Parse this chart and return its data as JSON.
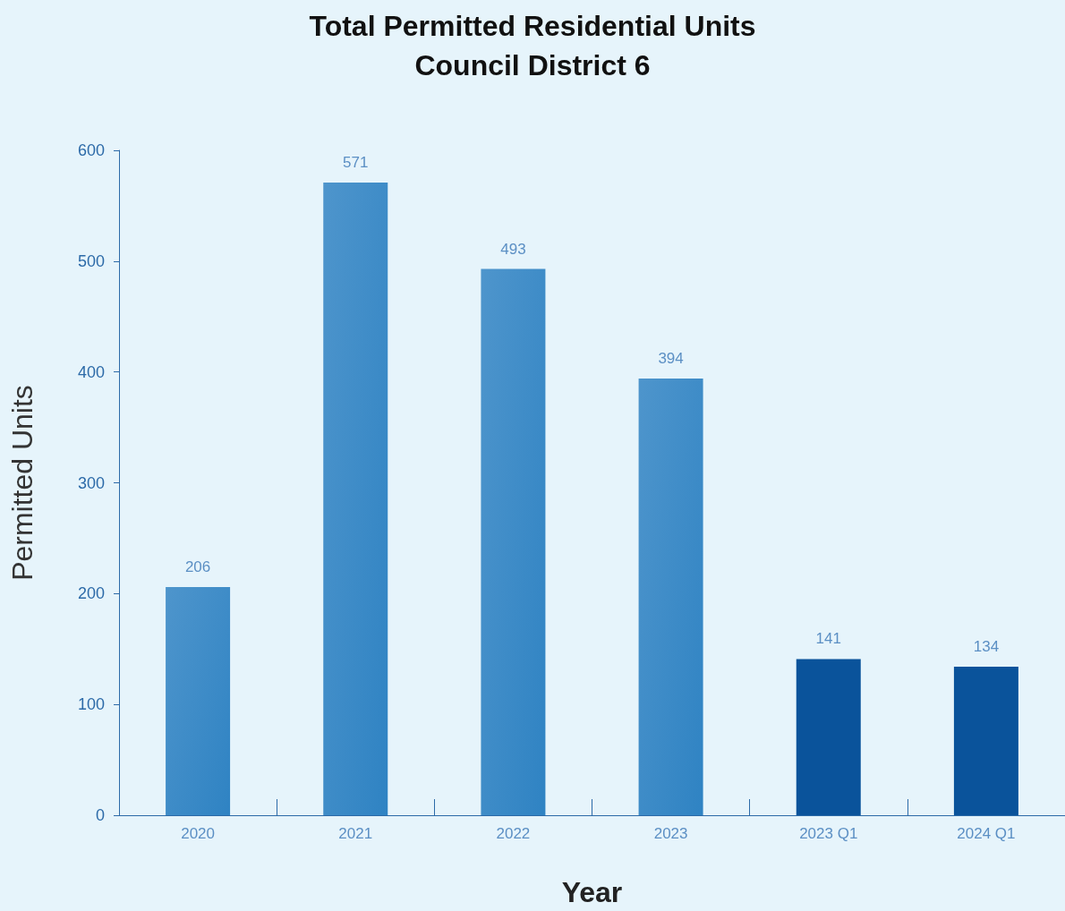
{
  "chart_data": {
    "type": "bar",
    "title": "Total Permitted Residential Units",
    "subtitle": "Council District 6",
    "xlabel": "Year",
    "ylabel": "Permitted Units",
    "categories": [
      "2020",
      "2021",
      "2022",
      "2023",
      "2023 Q1",
      "2024 Q1"
    ],
    "values": [
      206,
      571,
      493,
      394,
      141,
      134
    ],
    "colors": [
      "#2f83c3",
      "#2f83c3",
      "#2f83c3",
      "#2f83c3",
      "#0a539b",
      "#0a539b"
    ],
    "ylim": [
      0,
      600
    ],
    "yticks": [
      0,
      100,
      200,
      300,
      400,
      500,
      600
    ],
    "grid": false,
    "data_labels": true
  }
}
